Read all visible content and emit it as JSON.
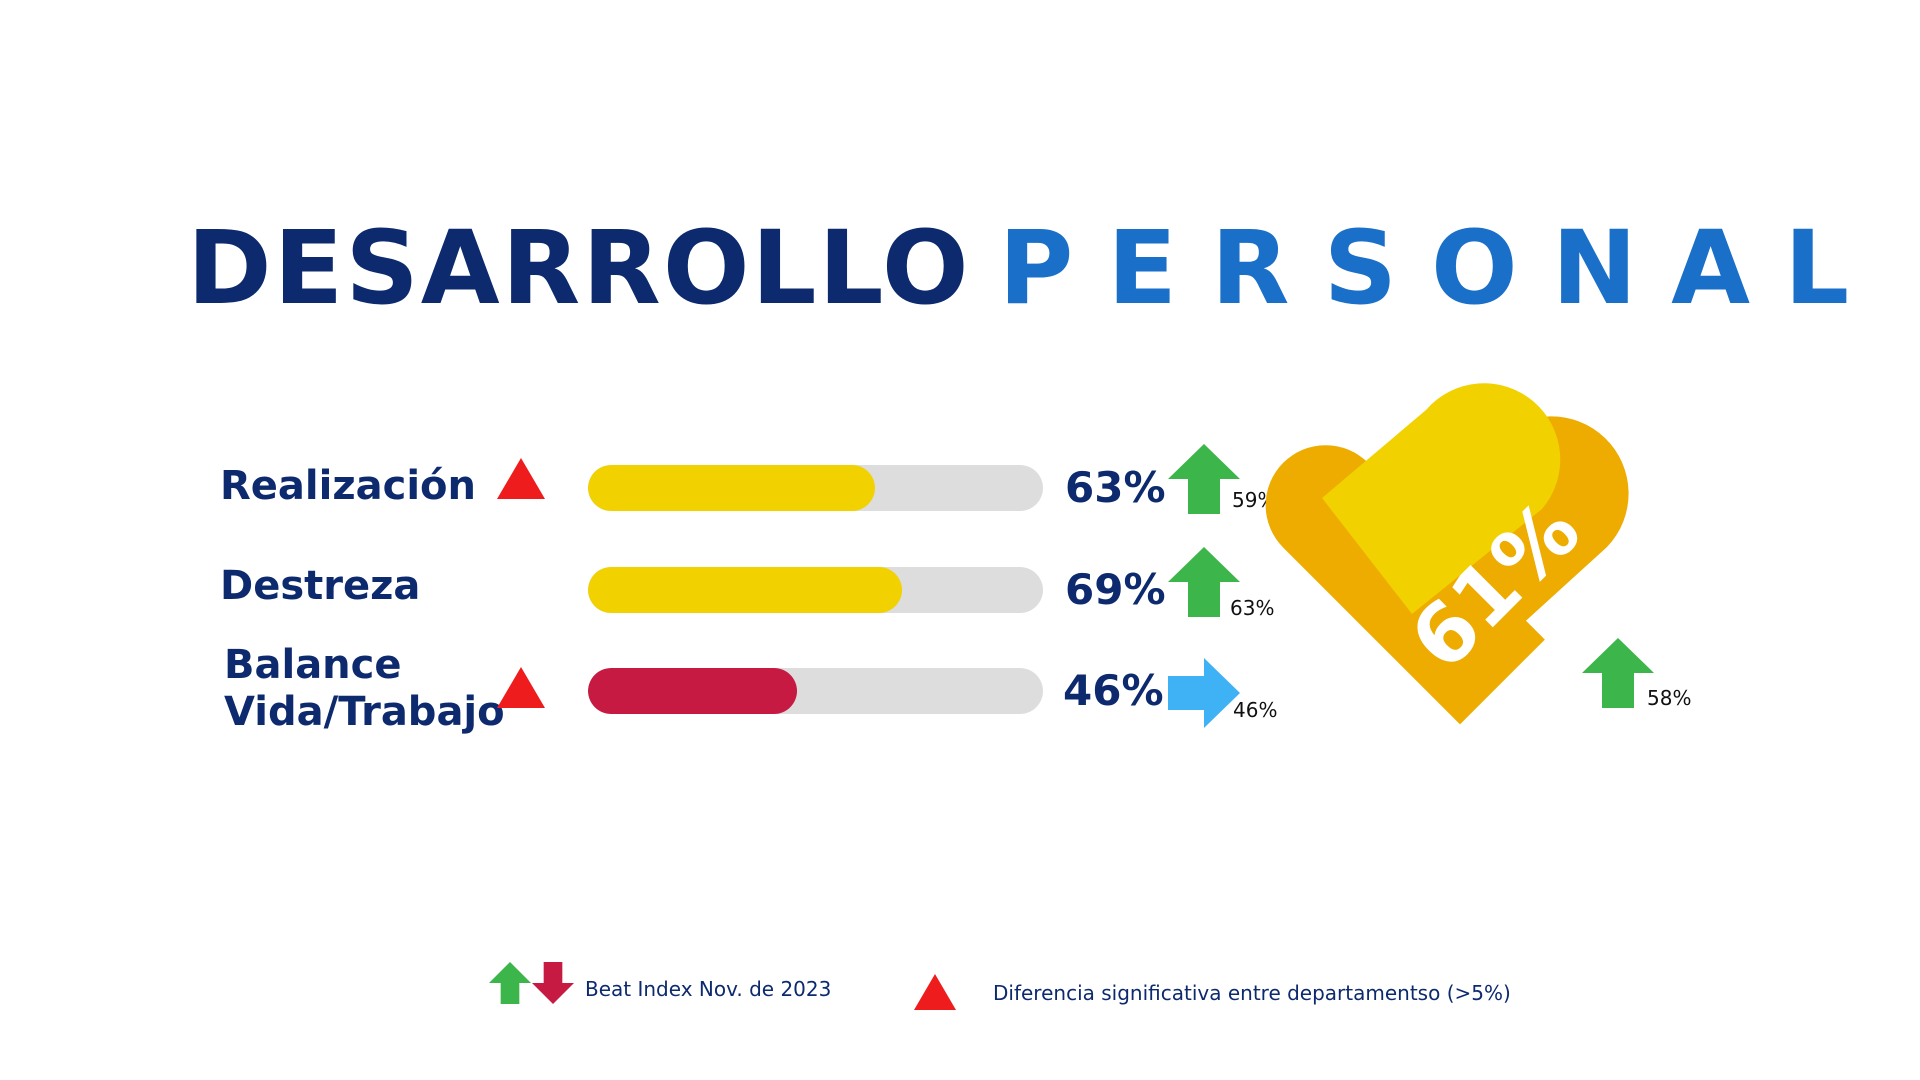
{
  "title": {
    "part1": "DESARROLLO",
    "part2": "PERSONAL"
  },
  "colors": {
    "navy": "#0d2a6e",
    "blue": "#1a6fc9",
    "yellow": "#f2d100",
    "crimson": "#c61a43",
    "track": "#dddddd",
    "green": "#3cb54a",
    "red_triangle": "#ee1c1c",
    "lightblue": "#3fb2f5",
    "heart_light": "#f2d100",
    "heart_dark": "#eeab00",
    "legend_down": "#c61a43"
  },
  "chart_data": {
    "type": "bar",
    "orientation": "horizontal",
    "xlim": [
      0,
      100
    ],
    "unit": "%",
    "rows": [
      {
        "label": "Realización",
        "value": 63,
        "value_label": "63%",
        "significant": true,
        "trend": "up",
        "benchmark": 59,
        "benchmark_label": "59%",
        "bar_color": "yellow"
      },
      {
        "label": "Destreza",
        "value": 69,
        "value_label": "69%",
        "significant": false,
        "trend": "up",
        "benchmark": 63,
        "benchmark_label": "63%",
        "bar_color": "yellow"
      },
      {
        "label_lines": [
          "Balance",
          "Vida/Trabajo"
        ],
        "value": 46,
        "value_label": "46%",
        "significant": true,
        "trend": "equal",
        "benchmark": 46,
        "benchmark_label": "46%",
        "bar_color": "crimson"
      }
    ],
    "overall": {
      "value": 61,
      "value_label": "61%",
      "trend": "up",
      "benchmark": 58,
      "benchmark_label": "58%",
      "shape": "heart"
    }
  },
  "legend": {
    "beat_index": {
      "text": "Beat Index Nov. de 2023",
      "icons": [
        "arrow-up-icon",
        "arrow-down-icon"
      ]
    },
    "significance": {
      "text": "Diferencia significativa entre departamentso (>5%)",
      "icon": "triangle-icon"
    }
  }
}
